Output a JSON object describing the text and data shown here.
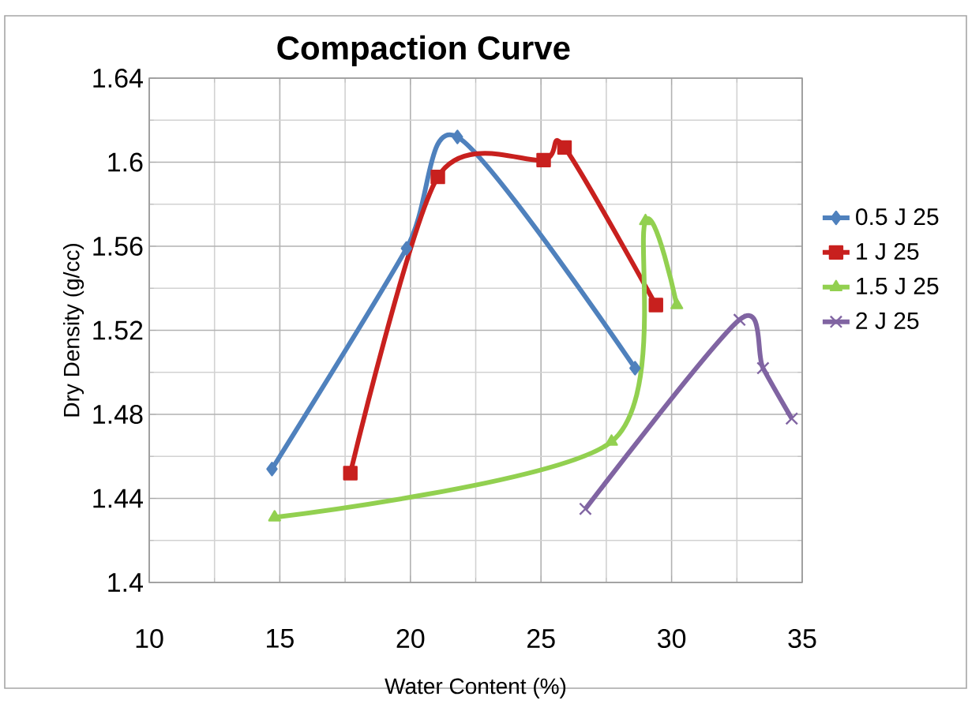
{
  "chart_data": {
    "type": "line",
    "title": "Compaction Curve",
    "xlabel": "Water Content (%)",
    "ylabel": "Dry Density (g/cc)",
    "xlim": [
      10,
      35
    ],
    "xticks": [
      10,
      15,
      20,
      25,
      30,
      35
    ],
    "ylim": [
      1.4,
      1.64
    ],
    "yticks": [
      1.4,
      1.44,
      1.48,
      1.52,
      1.56,
      1.6,
      1.64
    ],
    "grid": true,
    "legend": "right",
    "series": [
      {
        "name": "0.5 J 25",
        "color": "#4f81bd",
        "marker": "diamond",
        "x": [
          14.7,
          19.85,
          21.8,
          28.6
        ],
        "values": [
          1.454,
          1.559,
          1.612,
          1.502
        ]
      },
      {
        "name": "1 J 25",
        "color": "#c8201e",
        "marker": "square",
        "x": [
          17.7,
          21.05,
          25.1,
          25.9,
          29.4
        ],
        "values": [
          1.452,
          1.593,
          1.601,
          1.607,
          1.532
        ]
      },
      {
        "name": "1.5 J 25",
        "color": "#92d050",
        "marker": "triangle",
        "x": [
          14.8,
          27.7,
          29.0,
          30.2
        ],
        "values": [
          1.431,
          1.467,
          1.572,
          1.532
        ]
      },
      {
        "name": "2 J 25",
        "color": "#8064a2",
        "marker": "cross",
        "x": [
          26.7,
          32.6,
          33.5,
          34.6
        ],
        "values": [
          1.435,
          1.525,
          1.502,
          1.478
        ]
      }
    ]
  }
}
